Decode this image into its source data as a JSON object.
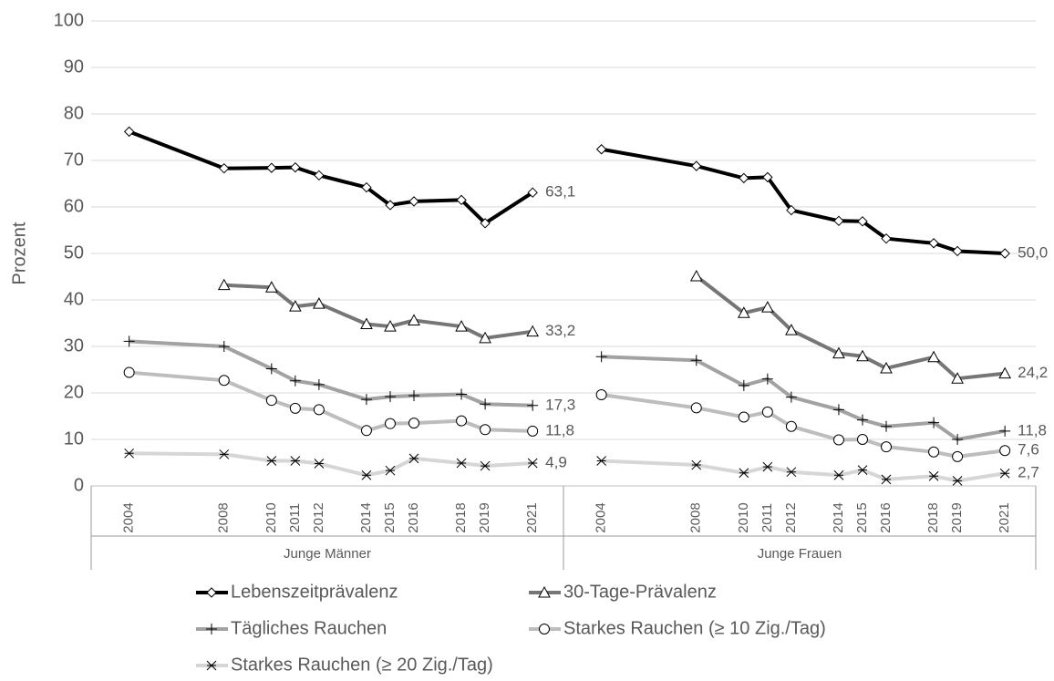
{
  "chart_data": {
    "type": "line",
    "y_label": "Prozent",
    "ylim": [
      0,
      100
    ],
    "yticks": [
      0,
      10,
      20,
      30,
      40,
      50,
      60,
      70,
      80,
      90,
      100
    ],
    "grid": true,
    "xlim": [
      2002.4,
      2022.3
    ],
    "series": [
      {
        "name": "Lebenszeitprävalenz",
        "color": "#000000",
        "marker": "diamond"
      },
      {
        "name": "30-Tage-Prävalenz",
        "color": "#767676",
        "marker": "triangle"
      },
      {
        "name": "Tägliches Rauchen",
        "color": "#a2a2a2",
        "marker": "plus"
      },
      {
        "name": "Starkes Rauchen (≥ 10 Zig./Tag)",
        "color": "#bdbdbd",
        "marker": "circle"
      },
      {
        "name": "Starkes Rauchen (≥ 20 Zig./Tag)",
        "color": "#d6d6d6",
        "marker": "star"
      }
    ],
    "panels": [
      {
        "label": "Junge Männer",
        "x": [
          2004,
          2008,
          2010,
          2011,
          2012,
          2014,
          2015,
          2016,
          2018,
          2019,
          2021
        ],
        "values": [
          [
            76.2,
            68.3,
            68.4,
            68.5,
            66.8,
            64.2,
            60.4,
            61.2,
            61.5,
            56.5,
            63.1
          ],
          [
            null,
            43.2,
            42.7,
            38.6,
            39.2,
            34.8,
            34.3,
            35.6,
            34.3,
            31.8,
            33.2
          ],
          [
            31.1,
            30.0,
            25.2,
            22.6,
            21.8,
            18.6,
            19.2,
            19.4,
            19.7,
            17.6,
            17.3
          ],
          [
            24.4,
            22.7,
            18.4,
            16.7,
            16.4,
            11.9,
            13.4,
            13.5,
            14.0,
            12.1,
            11.8
          ],
          [
            7.0,
            6.8,
            5.4,
            5.4,
            4.8,
            2.3,
            3.3,
            5.9,
            4.9,
            4.3,
            4.9
          ]
        ],
        "value_labels": [
          [
            null,
            null,
            null,
            null,
            null,
            null,
            null,
            null,
            null,
            null,
            "63,1"
          ],
          [
            null,
            null,
            null,
            null,
            null,
            null,
            null,
            null,
            null,
            null,
            "33,2"
          ],
          [
            null,
            null,
            null,
            null,
            null,
            null,
            null,
            null,
            null,
            null,
            "17,3"
          ],
          [
            null,
            null,
            null,
            null,
            null,
            null,
            null,
            null,
            null,
            null,
            "11,8"
          ],
          [
            null,
            null,
            null,
            null,
            null,
            null,
            null,
            null,
            null,
            null,
            "4,9"
          ]
        ]
      },
      {
        "label": "Junge Frauen",
        "x": [
          2004,
          2008,
          2010,
          2011,
          2012,
          2014,
          2015,
          2016,
          2018,
          2019,
          2021
        ],
        "values": [
          [
            72.4,
            68.8,
            66.2,
            66.4,
            59.3,
            57.0,
            56.9,
            53.2,
            52.2,
            50.5,
            50.0
          ],
          [
            null,
            45.1,
            37.2,
            38.4,
            33.5,
            28.5,
            27.9,
            25.3,
            27.7,
            23.1,
            24.2
          ],
          [
            27.8,
            27.0,
            21.6,
            23.0,
            19.1,
            16.4,
            14.2,
            12.8,
            13.6,
            10.0,
            11.8
          ],
          [
            19.6,
            16.8,
            14.8,
            15.9,
            12.8,
            9.9,
            10.0,
            8.4,
            7.3,
            6.3,
            7.6
          ],
          [
            5.4,
            4.5,
            2.8,
            4.1,
            3.0,
            2.3,
            3.4,
            1.4,
            2.1,
            1.1,
            2.7
          ]
        ],
        "value_labels": [
          [
            null,
            null,
            null,
            null,
            null,
            null,
            null,
            null,
            null,
            null,
            "50,0"
          ],
          [
            null,
            null,
            null,
            null,
            null,
            null,
            null,
            null,
            null,
            null,
            "24,2"
          ],
          [
            null,
            null,
            null,
            null,
            null,
            null,
            null,
            null,
            null,
            null,
            "11,8"
          ],
          [
            null,
            null,
            null,
            null,
            null,
            null,
            null,
            null,
            null,
            null,
            "7,6"
          ],
          [
            null,
            null,
            null,
            null,
            null,
            null,
            null,
            null,
            null,
            null,
            "2,7"
          ]
        ]
      }
    ]
  }
}
